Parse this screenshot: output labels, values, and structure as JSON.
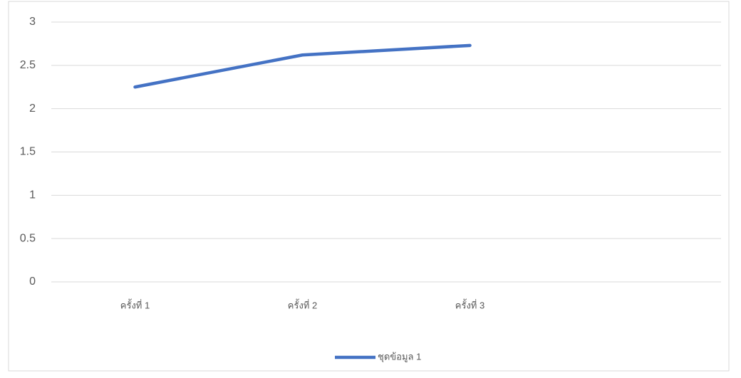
{
  "chart_data": {
    "type": "line",
    "categories": [
      "ครั้งที่ 1",
      "ครั้งที่ 2",
      "ครั้งที่ 3",
      null
    ],
    "series": [
      {
        "name": "ชุดข้อมูล 1",
        "color": "#4472c4",
        "values": [
          2.25,
          2.62,
          2.73,
          null
        ]
      }
    ],
    "ylim": [
      0,
      3
    ],
    "yticks": [
      0,
      0.5,
      1,
      1.5,
      2,
      2.5,
      3
    ],
    "grid": true,
    "legend": "bottom"
  }
}
